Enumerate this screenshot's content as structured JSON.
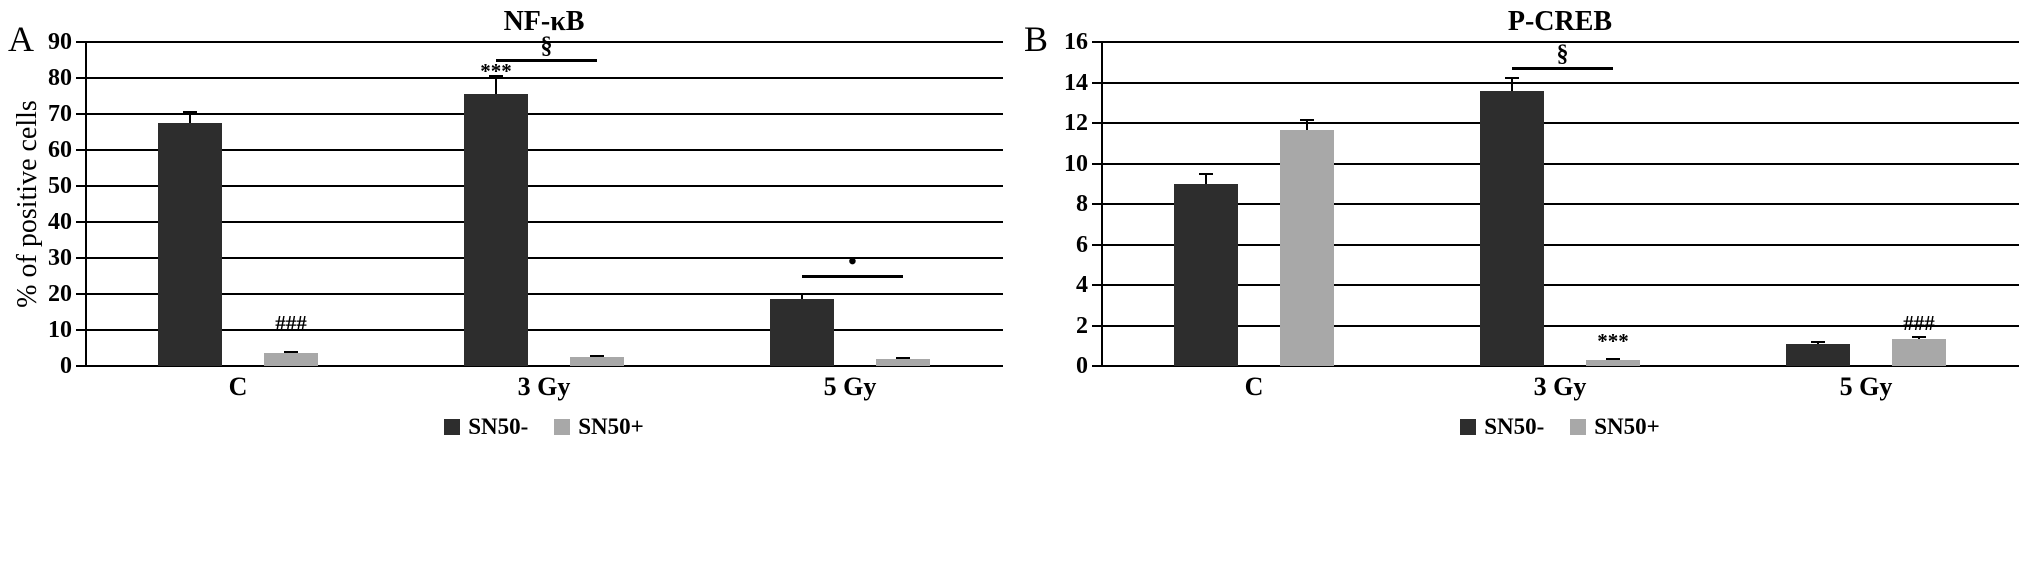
{
  "figure": {
    "background": "#ffffff"
  },
  "chart_data": [
    {
      "type": "bar",
      "panel_label": "A",
      "title": "NF-κB",
      "ylabel": "% of positive cells",
      "categories": [
        "C",
        "3 Gy",
        "5 Gy"
      ],
      "ylim": [
        0,
        90
      ],
      "ytick_step": 10,
      "grid": true,
      "legend_position": "bottom",
      "series": [
        {
          "name": "SN50-",
          "color": "#2d2d2d",
          "values": [
            67.5,
            75.5,
            18.5
          ],
          "errors": [
            3,
            5,
            1.5
          ]
        },
        {
          "name": "SN50+",
          "color": "#a8a8a8",
          "values": [
            3.5,
            2.5,
            2
          ],
          "errors": [
            0.4,
            0.4,
            0.3
          ]
        }
      ],
      "annotations": [
        {
          "kind": "label",
          "symbol": "***",
          "cat": 1,
          "series": 0,
          "y": 79
        },
        {
          "kind": "label",
          "symbol": "###",
          "cat": 0,
          "series": 1,
          "y": 9
        },
        {
          "kind": "bracket",
          "symbol": "§",
          "cat": 1,
          "from_series": 0,
          "to_series": 1,
          "y": 84.5
        },
        {
          "kind": "bracket",
          "symbol": "•",
          "cat": 2,
          "from_series": 0,
          "to_series": 1,
          "y": 24.5
        }
      ]
    },
    {
      "type": "bar",
      "panel_label": "B",
      "title": "P-CREB",
      "ylabel": "",
      "categories": [
        "C",
        "3 Gy",
        "5 Gy"
      ],
      "ylim": [
        0,
        16
      ],
      "ytick_step": 2,
      "grid": true,
      "legend_position": "bottom",
      "series": [
        {
          "name": "SN50-",
          "color": "#2d2d2d",
          "values": [
            9.0,
            13.6,
            1.1
          ],
          "errors": [
            0.5,
            0.6,
            0.08
          ]
        },
        {
          "name": "SN50+",
          "color": "#a8a8a8",
          "values": [
            11.65,
            0.3,
            1.35
          ],
          "errors": [
            0.5,
            0.07,
            0.1
          ]
        }
      ],
      "annotations": [
        {
          "kind": "bracket",
          "symbol": "§",
          "cat": 1,
          "from_series": 0,
          "to_series": 1,
          "y": 14.6
        },
        {
          "kind": "label",
          "symbol": "***",
          "cat": 1,
          "series": 1,
          "y": 0.7
        },
        {
          "kind": "label",
          "symbol": "###",
          "cat": 2,
          "series": 1,
          "y": 1.6
        }
      ]
    }
  ]
}
